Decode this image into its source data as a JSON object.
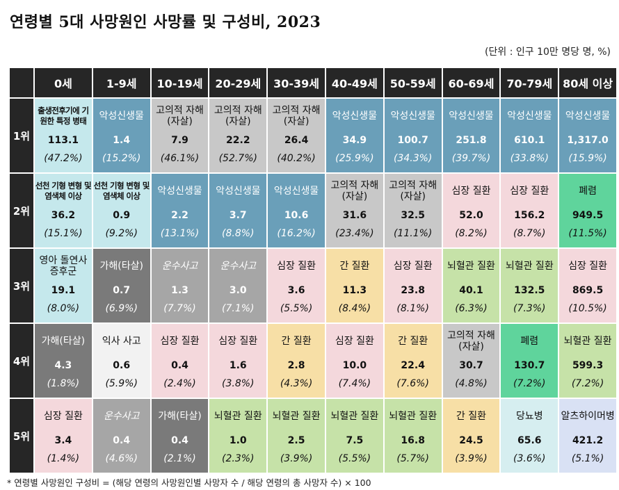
{
  "title": "연령별 5대 사망원인 사망률 및 구성비, 2023",
  "unit": "(단위 : 인구 10만 명당 명, %)",
  "ages": [
    "0세",
    "1-9세",
    "10-19세",
    "20-29세",
    "30-39세",
    "40-49세",
    "50-59세",
    "60-69세",
    "70-79세",
    "80세 이상"
  ],
  "ranks": [
    {
      "label": "1위",
      "cells": [
        {
          "cause": "출생전후기에 기원한 특정 병태",
          "value": "113.1",
          "pct": "(47.2%)",
          "color": "#c5e8ec",
          "dark": false,
          "small": true
        },
        {
          "cause": "악성신생물",
          "value": "1.4",
          "pct": "(15.2%)",
          "color": "#6a9fb9",
          "dark": true
        },
        {
          "cause": "고의적 자해(자살)",
          "value": "7.9",
          "pct": "(46.1%)",
          "color": "#c8c8c8",
          "dark": false
        },
        {
          "cause": "고의적 자해(자살)",
          "value": "22.2",
          "pct": "(52.7%)",
          "color": "#c8c8c8",
          "dark": false
        },
        {
          "cause": "고의적 자해(자살)",
          "value": "26.4",
          "pct": "(40.2%)",
          "color": "#c8c8c8",
          "dark": false
        },
        {
          "cause": "악성신생물",
          "value": "34.9",
          "pct": "(25.9%)",
          "color": "#6a9fb9",
          "dark": true
        },
        {
          "cause": "악성신생물",
          "value": "100.7",
          "pct": "(34.3%)",
          "color": "#6a9fb9",
          "dark": true
        },
        {
          "cause": "악성신생물",
          "value": "251.8",
          "pct": "(39.7%)",
          "color": "#6a9fb9",
          "dark": true
        },
        {
          "cause": "악성신생물",
          "value": "610.1",
          "pct": "(33.8%)",
          "color": "#6a9fb9",
          "dark": true
        },
        {
          "cause": "악성신생물",
          "value": "1,317.0",
          "pct": "(15.9%)",
          "color": "#6a9fb9",
          "dark": true
        }
      ]
    },
    {
      "label": "2위",
      "cells": [
        {
          "cause": "선천 기형 변형 및 염색체 이상",
          "value": "36.2",
          "pct": "(15.1%)",
          "color": "#c5e8ec",
          "dark": false,
          "small": true
        },
        {
          "cause": "선천 기형 변형 및 염색체 이상",
          "value": "0.9",
          "pct": "(9.2%)",
          "color": "#c5e8ec",
          "dark": false,
          "small": true
        },
        {
          "cause": "악성신생물",
          "value": "2.2",
          "pct": "(13.1%)",
          "color": "#6a9fb9",
          "dark": true
        },
        {
          "cause": "악성신생물",
          "value": "3.7",
          "pct": "(8.8%)",
          "color": "#6a9fb9",
          "dark": true
        },
        {
          "cause": "악성신생물",
          "value": "10.6",
          "pct": "(16.2%)",
          "color": "#6a9fb9",
          "dark": true
        },
        {
          "cause": "고의적 자해(자살)",
          "value": "31.6",
          "pct": "(23.4%)",
          "color": "#c8c8c8",
          "dark": false
        },
        {
          "cause": "고의적 자해(자살)",
          "value": "32.5",
          "pct": "(11.1%)",
          "color": "#c8c8c8",
          "dark": false
        },
        {
          "cause": "심장 질환",
          "value": "52.0",
          "pct": "(8.2%)",
          "color": "#f4d8dc",
          "dark": false
        },
        {
          "cause": "심장 질환",
          "value": "156.2",
          "pct": "(8.7%)",
          "color": "#f4d8dc",
          "dark": false
        },
        {
          "cause": "폐렴",
          "value": "949.5",
          "pct": "(11.5%)",
          "color": "#5fd49c",
          "dark": false
        }
      ]
    },
    {
      "label": "3위",
      "cells": [
        {
          "cause": "영아 돌연사 증후군",
          "value": "19.1",
          "pct": "(8.0%)",
          "color": "#c5e8ec",
          "dark": false
        },
        {
          "cause": "가해(타살)",
          "value": "0.7",
          "pct": "(6.9%)",
          "color": "#7a7a7a",
          "dark": true
        },
        {
          "cause": "운수사고",
          "value": "1.3",
          "pct": "(7.7%)",
          "color": "#a6a6a6",
          "dark": true,
          "italic": true
        },
        {
          "cause": "운수사고",
          "value": "3.0",
          "pct": "(7.1%)",
          "color": "#a6a6a6",
          "dark": true,
          "italic": true
        },
        {
          "cause": "심장 질환",
          "value": "3.6",
          "pct": "(5.5%)",
          "color": "#f4d8dc",
          "dark": false
        },
        {
          "cause": "간 질환",
          "value": "11.3",
          "pct": "(8.4%)",
          "color": "#f7dfa6",
          "dark": false
        },
        {
          "cause": "심장 질환",
          "value": "23.8",
          "pct": "(8.1%)",
          "color": "#f4d8dc",
          "dark": false
        },
        {
          "cause": "뇌혈관 질환",
          "value": "40.1",
          "pct": "(6.3%)",
          "color": "#c6e2a8",
          "dark": false
        },
        {
          "cause": "뇌혈관 질환",
          "value": "132.5",
          "pct": "(7.3%)",
          "color": "#c6e2a8",
          "dark": false
        },
        {
          "cause": "심장 질환",
          "value": "869.5",
          "pct": "(10.5%)",
          "color": "#f4d8dc",
          "dark": false
        }
      ]
    },
    {
      "label": "4위",
      "cells": [
        {
          "cause": "가해(타살)",
          "value": "4.3",
          "pct": "(1.8%)",
          "color": "#7a7a7a",
          "dark": true
        },
        {
          "cause": "익사 사고",
          "value": "0.6",
          "pct": "(5.9%)",
          "color": "#f2f2f2",
          "dark": false
        },
        {
          "cause": "심장 질환",
          "value": "0.4",
          "pct": "(2.4%)",
          "color": "#f4d8dc",
          "dark": false
        },
        {
          "cause": "심장 질환",
          "value": "1.6",
          "pct": "(3.8%)",
          "color": "#f4d8dc",
          "dark": false
        },
        {
          "cause": "간 질환",
          "value": "2.8",
          "pct": "(4.3%)",
          "color": "#f7dfa6",
          "dark": false
        },
        {
          "cause": "심장 질환",
          "value": "10.0",
          "pct": "(7.4%)",
          "color": "#f4d8dc",
          "dark": false
        },
        {
          "cause": "간 질환",
          "value": "22.4",
          "pct": "(7.6%)",
          "color": "#f7dfa6",
          "dark": false
        },
        {
          "cause": "고의적 자해(자살)",
          "value": "30.7",
          "pct": "(4.8%)",
          "color": "#c8c8c8",
          "dark": false
        },
        {
          "cause": "폐렴",
          "value": "130.7",
          "pct": "(7.2%)",
          "color": "#5fd49c",
          "dark": false
        },
        {
          "cause": "뇌혈관 질환",
          "value": "599.3",
          "pct": "(7.2%)",
          "color": "#c6e2a8",
          "dark": false
        }
      ]
    },
    {
      "label": "5위",
      "cells": [
        {
          "cause": "심장 질환",
          "value": "3.4",
          "pct": "(1.4%)",
          "color": "#f4d8dc",
          "dark": false
        },
        {
          "cause": "운수사고",
          "value": "0.4",
          "pct": "(4.6%)",
          "color": "#a6a6a6",
          "dark": true,
          "italic": true
        },
        {
          "cause": "가해(타살)",
          "value": "0.4",
          "pct": "(2.1%)",
          "color": "#7a7a7a",
          "dark": true
        },
        {
          "cause": "뇌혈관 질환",
          "value": "1.0",
          "pct": "(2.3%)",
          "color": "#c6e2a8",
          "dark": false
        },
        {
          "cause": "뇌혈관 질환",
          "value": "2.5",
          "pct": "(3.9%)",
          "color": "#c6e2a8",
          "dark": false
        },
        {
          "cause": "뇌혈관 질환",
          "value": "7.5",
          "pct": "(5.5%)",
          "color": "#c6e2a8",
          "dark": false
        },
        {
          "cause": "뇌혈관 질환",
          "value": "16.8",
          "pct": "(5.7%)",
          "color": "#c6e2a8",
          "dark": false
        },
        {
          "cause": "간 질환",
          "value": "24.5",
          "pct": "(3.9%)",
          "color": "#f7dfa6",
          "dark": false
        },
        {
          "cause": "당뇨병",
          "value": "65.6",
          "pct": "(3.6%)",
          "color": "#d6eef0",
          "dark": false
        },
        {
          "cause": "알츠하이머병",
          "value": "421.2",
          "pct": "(5.1%)",
          "color": "#d9e1f4",
          "dark": false
        }
      ]
    }
  ],
  "footnote": "* 연령별 사망원인 구성비 = (해당 연령의 사망원인별 사망자 수 / 해당 연령의 총 사망자 수) × 100"
}
